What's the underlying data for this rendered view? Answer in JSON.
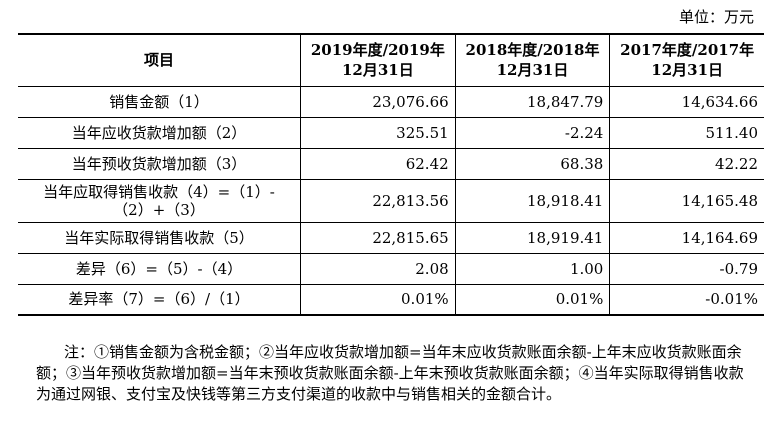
{
  "unit_label": "单位：万元",
  "table": {
    "headers": [
      "项目",
      "2019年度/2019年12月31日",
      "2018年度/2018年12月31日",
      "2017年度/2017年12月31日"
    ],
    "header_lines": [
      [
        "项目"
      ],
      [
        "2019年度/2019年",
        "12月31日"
      ],
      [
        "2018年度/2018年",
        "12月31日"
      ],
      [
        "2017年度/2017年",
        "12月31日"
      ]
    ],
    "rows": [
      {
        "label": "销售金额（1）",
        "values": [
          "23,076.66",
          "18,847.79",
          "14,634.66"
        ]
      },
      {
        "label": "当年应收货款增加额（2）",
        "values": [
          "325.51",
          "-2.24",
          "511.40"
        ]
      },
      {
        "label": "当年预收货款增加额（3）",
        "values": [
          "62.42",
          "68.38",
          "42.22"
        ]
      },
      {
        "label": "当年应取得销售收款（4）=（1）-（2）+（3）",
        "label_lines": [
          "当年应取得销售收款（4）=（1）-",
          "（2）+（3）"
        ],
        "values": [
          "22,813.56",
          "18,918.41",
          "14,165.48"
        ]
      },
      {
        "label": "当年实际取得销售收款（5）",
        "values": [
          "22,815.65",
          "18,919.41",
          "14,164.69"
        ]
      },
      {
        "label": "差异（6）=（5）-（4）",
        "values": [
          "2.08",
          "1.00",
          "-0.79"
        ]
      },
      {
        "label": "差异率（7）=（6）/（1）",
        "values": [
          "0.01%",
          "0.01%",
          "-0.01%"
        ]
      }
    ]
  },
  "note": "注：①销售金额为含税金额；②当年应收货款增加额=当年末应收货款账面余额-上年末应收货款账面余额；③当年预收货款增加额=当年末预收货款账面余额-上年末预收货款账面余额；④当年实际取得销售收款为通过网银、支付宝及快钱等第三方支付渠道的收款中与销售相关的金额合计。"
}
